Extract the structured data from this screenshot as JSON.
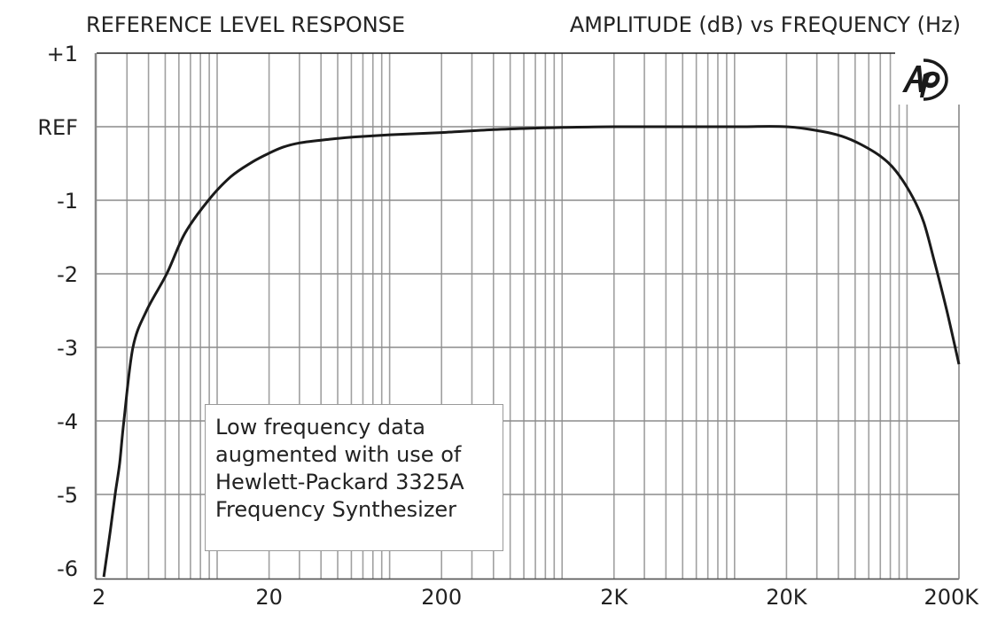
{
  "chart_data": {
    "type": "line",
    "title": "REFERENCE LEVEL RESPONSE",
    "subtitle": "AMPLITUDE (dB) vs FREQUENCY (Hz)",
    "xlabel": "Frequency (Hz)",
    "ylabel": "Amplitude (dB)",
    "xscale": "log",
    "xlim": [
      2,
      200000
    ],
    "ylim": [
      -6.15,
      1
    ],
    "grid": true,
    "x_ticks": [
      {
        "value": 2,
        "label": "2"
      },
      {
        "value": 20,
        "label": "20"
      },
      {
        "value": 200,
        "label": "200"
      },
      {
        "value": 2000,
        "label": "2K"
      },
      {
        "value": 20000,
        "label": "20K"
      },
      {
        "value": 200000,
        "label": "200K"
      }
    ],
    "y_ticks": [
      {
        "value": 1,
        "label": "+1"
      },
      {
        "value": 0,
        "label": "REF"
      },
      {
        "value": -1,
        "label": "-1"
      },
      {
        "value": -2,
        "label": "-2"
      },
      {
        "value": -3,
        "label": "-3"
      },
      {
        "value": -4,
        "label": "-4"
      },
      {
        "value": -5,
        "label": "-5"
      },
      {
        "value": -6,
        "label": "-6"
      }
    ],
    "series": [
      {
        "name": "Reference level response",
        "color": "#1a1a1a",
        "x": [
          2.2,
          2.4,
          2.56,
          2.72,
          2.88,
          3.25,
          3.9,
          5.1,
          6.5,
          8.9,
          12,
          16,
          20,
          24,
          30,
          45,
          62,
          100,
          200,
          400,
          665,
          1000,
          2000,
          5000,
          10000,
          20000,
          31500,
          42000,
          54000,
          70000,
          86000,
          108000,
          125000,
          143000,
          170000,
          200000
        ],
        "y": [
          -6.12,
          -5.5,
          -5.0,
          -4.58,
          -4.0,
          -3.0,
          -2.5,
          -2.0,
          -1.45,
          -1.0,
          -0.68,
          -0.48,
          -0.36,
          -0.28,
          -0.22,
          -0.17,
          -0.14,
          -0.11,
          -0.08,
          -0.04,
          -0.02,
          -0.01,
          0,
          0,
          0,
          0,
          -0.06,
          -0.13,
          -0.24,
          -0.4,
          -0.6,
          -0.96,
          -1.3,
          -1.8,
          -2.5,
          -3.23
        ]
      }
    ],
    "annotation": {
      "lines": [
        "Low frequency data",
        "augmented with use of",
        "Hewlett-Packard 3325A",
        "Frequency Synthesizer"
      ],
      "placement": "bottom-left"
    },
    "logo_text": "Ap"
  }
}
